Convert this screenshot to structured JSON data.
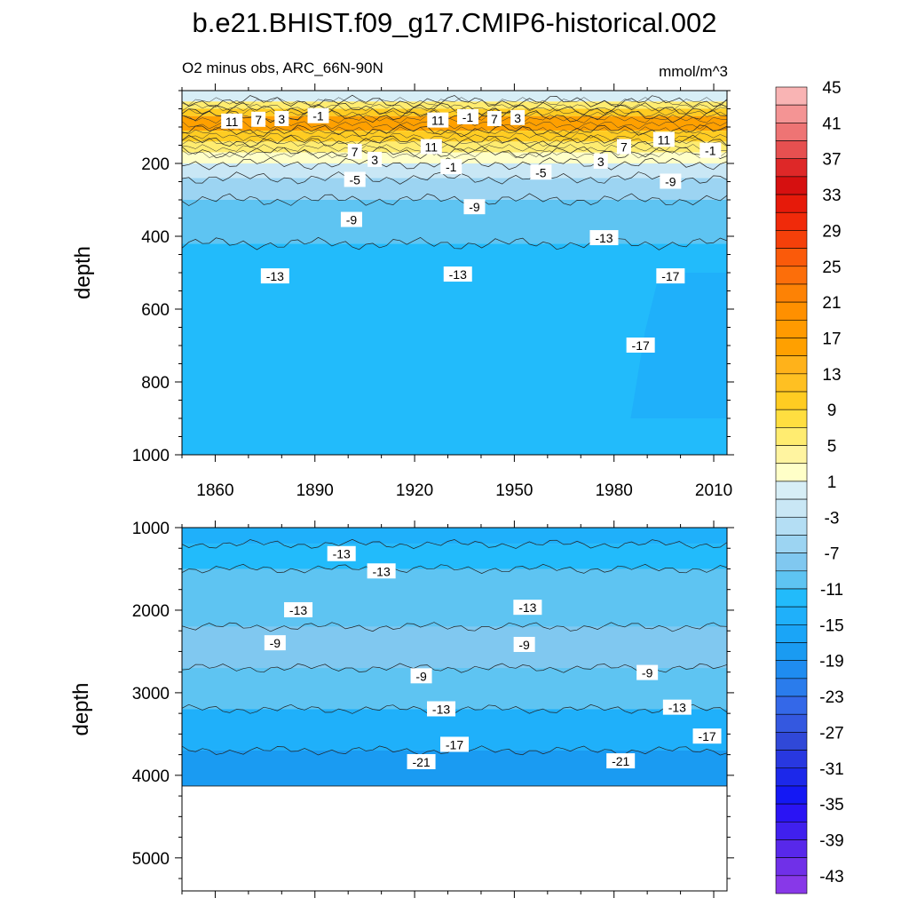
{
  "title": "b.e21.BHIST.f09_g17.CMIP6-historical.002",
  "subtitle": "O2 minus obs, ARC_66N-90N",
  "units": "mmol/m^3",
  "colorbar": {
    "levels": [
      -45,
      -43,
      -41,
      -39,
      -37,
      -35,
      -33,
      -31,
      -29,
      -27,
      -25,
      -23,
      -21,
      -19,
      -17,
      -15,
      -13,
      -11,
      -9,
      -7,
      -5,
      -3,
      -1,
      1,
      3,
      5,
      7,
      9,
      11,
      13,
      15,
      17,
      19,
      21,
      23,
      25,
      27,
      29,
      31,
      33,
      35,
      37,
      39,
      41,
      43,
      45
    ],
    "tick_labels": [
      "-43",
      "-39",
      "-35",
      "-31",
      "-27",
      "-23",
      "-19",
      "-15",
      "-11",
      "-7",
      "-3",
      "1",
      "5",
      "9",
      "13",
      "17",
      "21",
      "25",
      "29",
      "33",
      "37",
      "41",
      "45"
    ],
    "colors": {
      "-17": "#1a9bf2",
      "-15": "#1fb0fa",
      "-13": "#22bbfb",
      "-11": "#5ec4f2",
      "-9": "#80c8f0",
      "-7": "#9cd4f2",
      "-5": "#b4def4",
      "-3": "#c9e7f5",
      "-1": "#d7eef6",
      "1": "#ffffc8",
      "3": "#fff4a0",
      "5": "#ffec70",
      "7": "#ffde40",
      "9": "#ffcc22",
      "11": "#ffb21a",
      "13": "#ffa000"
    }
  },
  "chart_data": [
    {
      "type": "heatmap",
      "panel": "upper",
      "subtitle": "O2 minus obs, ARC_66N-90N",
      "units": "mmol/m^3",
      "xlabel": "",
      "ylabel": "depth",
      "xlim": [
        1850,
        2014
      ],
      "ylim": [
        1000,
        0
      ],
      "x_ticks": [
        1860,
        1890,
        1920,
        1950,
        1980,
        2010
      ],
      "y_ticks": [
        200,
        400,
        600,
        800,
        1000
      ],
      "bands": [
        {
          "value": -1,
          "top": 0,
          "bottom": 30
        },
        {
          "value": 5,
          "top": 30,
          "bottom": 50
        },
        {
          "value": 9,
          "top": 50,
          "bottom": 70
        },
        {
          "value": 13,
          "top": 70,
          "bottom": 110
        },
        {
          "value": 9,
          "top": 110,
          "bottom": 140
        },
        {
          "value": 5,
          "top": 140,
          "bottom": 170
        },
        {
          "value": 1,
          "top": 170,
          "bottom": 200
        },
        {
          "value": -3,
          "top": 200,
          "bottom": 240
        },
        {
          "value": -7,
          "top": 240,
          "bottom": 300
        },
        {
          "value": -11,
          "top": 300,
          "bottom": 420
        },
        {
          "value": -13,
          "top": 420,
          "bottom": 1000
        }
      ],
      "regions": [
        {
          "value": -15,
          "x": [
            1985,
            2014
          ],
          "y": [
            500,
            900
          ]
        }
      ],
      "contour_labels": [
        {
          "text": "11",
          "x": 1865,
          "y": 85
        },
        {
          "text": "7",
          "x": 1873,
          "y": 80
        },
        {
          "text": "3",
          "x": 1880,
          "y": 78
        },
        {
          "text": "-1",
          "x": 1891,
          "y": 70
        },
        {
          "text": "11",
          "x": 1927,
          "y": 82
        },
        {
          "text": "-1",
          "x": 1936,
          "y": 73
        },
        {
          "text": "7",
          "x": 1944,
          "y": 78
        },
        {
          "text": "3",
          "x": 1951,
          "y": 75
        },
        {
          "text": "11",
          "x": 1925,
          "y": 155
        },
        {
          "text": "7",
          "x": 1902,
          "y": 168
        },
        {
          "text": "3",
          "x": 1908,
          "y": 190
        },
        {
          "text": "-1",
          "x": 1931,
          "y": 210
        },
        {
          "text": "-5",
          "x": 1902,
          "y": 245
        },
        {
          "text": "-5",
          "x": 1958,
          "y": 225
        },
        {
          "text": "7",
          "x": 1983,
          "y": 155
        },
        {
          "text": "11",
          "x": 1995,
          "y": 135
        },
        {
          "text": "3",
          "x": 1976,
          "y": 195
        },
        {
          "text": "-1",
          "x": 2009,
          "y": 165
        },
        {
          "text": "-9",
          "x": 1997,
          "y": 250
        },
        {
          "text": "-9",
          "x": 1901,
          "y": 355
        },
        {
          "text": "-9",
          "x": 1938,
          "y": 320
        },
        {
          "text": "-13",
          "x": 1977,
          "y": 405
        },
        {
          "text": "-13",
          "x": 1878,
          "y": 510
        },
        {
          "text": "-13",
          "x": 1933,
          "y": 505
        },
        {
          "text": "-17",
          "x": 1997,
          "y": 510
        },
        {
          "text": "-17",
          "x": 1988,
          "y": 700
        }
      ]
    },
    {
      "type": "heatmap",
      "panel": "lower",
      "xlabel": "",
      "ylabel": "depth",
      "xlim": [
        1850,
        2014
      ],
      "ylim": [
        5400,
        1000
      ],
      "x_ticks": [
        1860,
        1890,
        1920,
        1950,
        1980,
        2010
      ],
      "y_ticks": [
        1000,
        2000,
        3000,
        4000,
        5000
      ],
      "no_data_below": 4130,
      "bands": [
        {
          "value": -15,
          "top": 1000,
          "bottom": 1200
        },
        {
          "value": -13,
          "top": 1200,
          "bottom": 1500
        },
        {
          "value": -11,
          "top": 1500,
          "bottom": 2200
        },
        {
          "value": -9,
          "top": 2200,
          "bottom": 2700
        },
        {
          "value": -11,
          "top": 2700,
          "bottom": 3200
        },
        {
          "value": -15,
          "top": 3200,
          "bottom": 3700
        },
        {
          "value": -17,
          "top": 3700,
          "bottom": 4130
        }
      ],
      "contour_labels": [
        {
          "text": "-13",
          "x": 1898,
          "y": 1320
        },
        {
          "text": "-13",
          "x": 1910,
          "y": 1530
        },
        {
          "text": "-13",
          "x": 1885,
          "y": 2000
        },
        {
          "text": "-13",
          "x": 1954,
          "y": 1970
        },
        {
          "text": "-9",
          "x": 1878,
          "y": 2400
        },
        {
          "text": "-9",
          "x": 1953,
          "y": 2420
        },
        {
          "text": "-9",
          "x": 1922,
          "y": 2800
        },
        {
          "text": "-9",
          "x": 1990,
          "y": 2760
        },
        {
          "text": "-13",
          "x": 1928,
          "y": 3200
        },
        {
          "text": "-13",
          "x": 1999,
          "y": 3180
        },
        {
          "text": "-17",
          "x": 1932,
          "y": 3630
        },
        {
          "text": "-17",
          "x": 2008,
          "y": 3530
        },
        {
          "text": "-21",
          "x": 1922,
          "y": 3840
        },
        {
          "text": "-21",
          "x": 1982,
          "y": 3830
        }
      ]
    }
  ]
}
